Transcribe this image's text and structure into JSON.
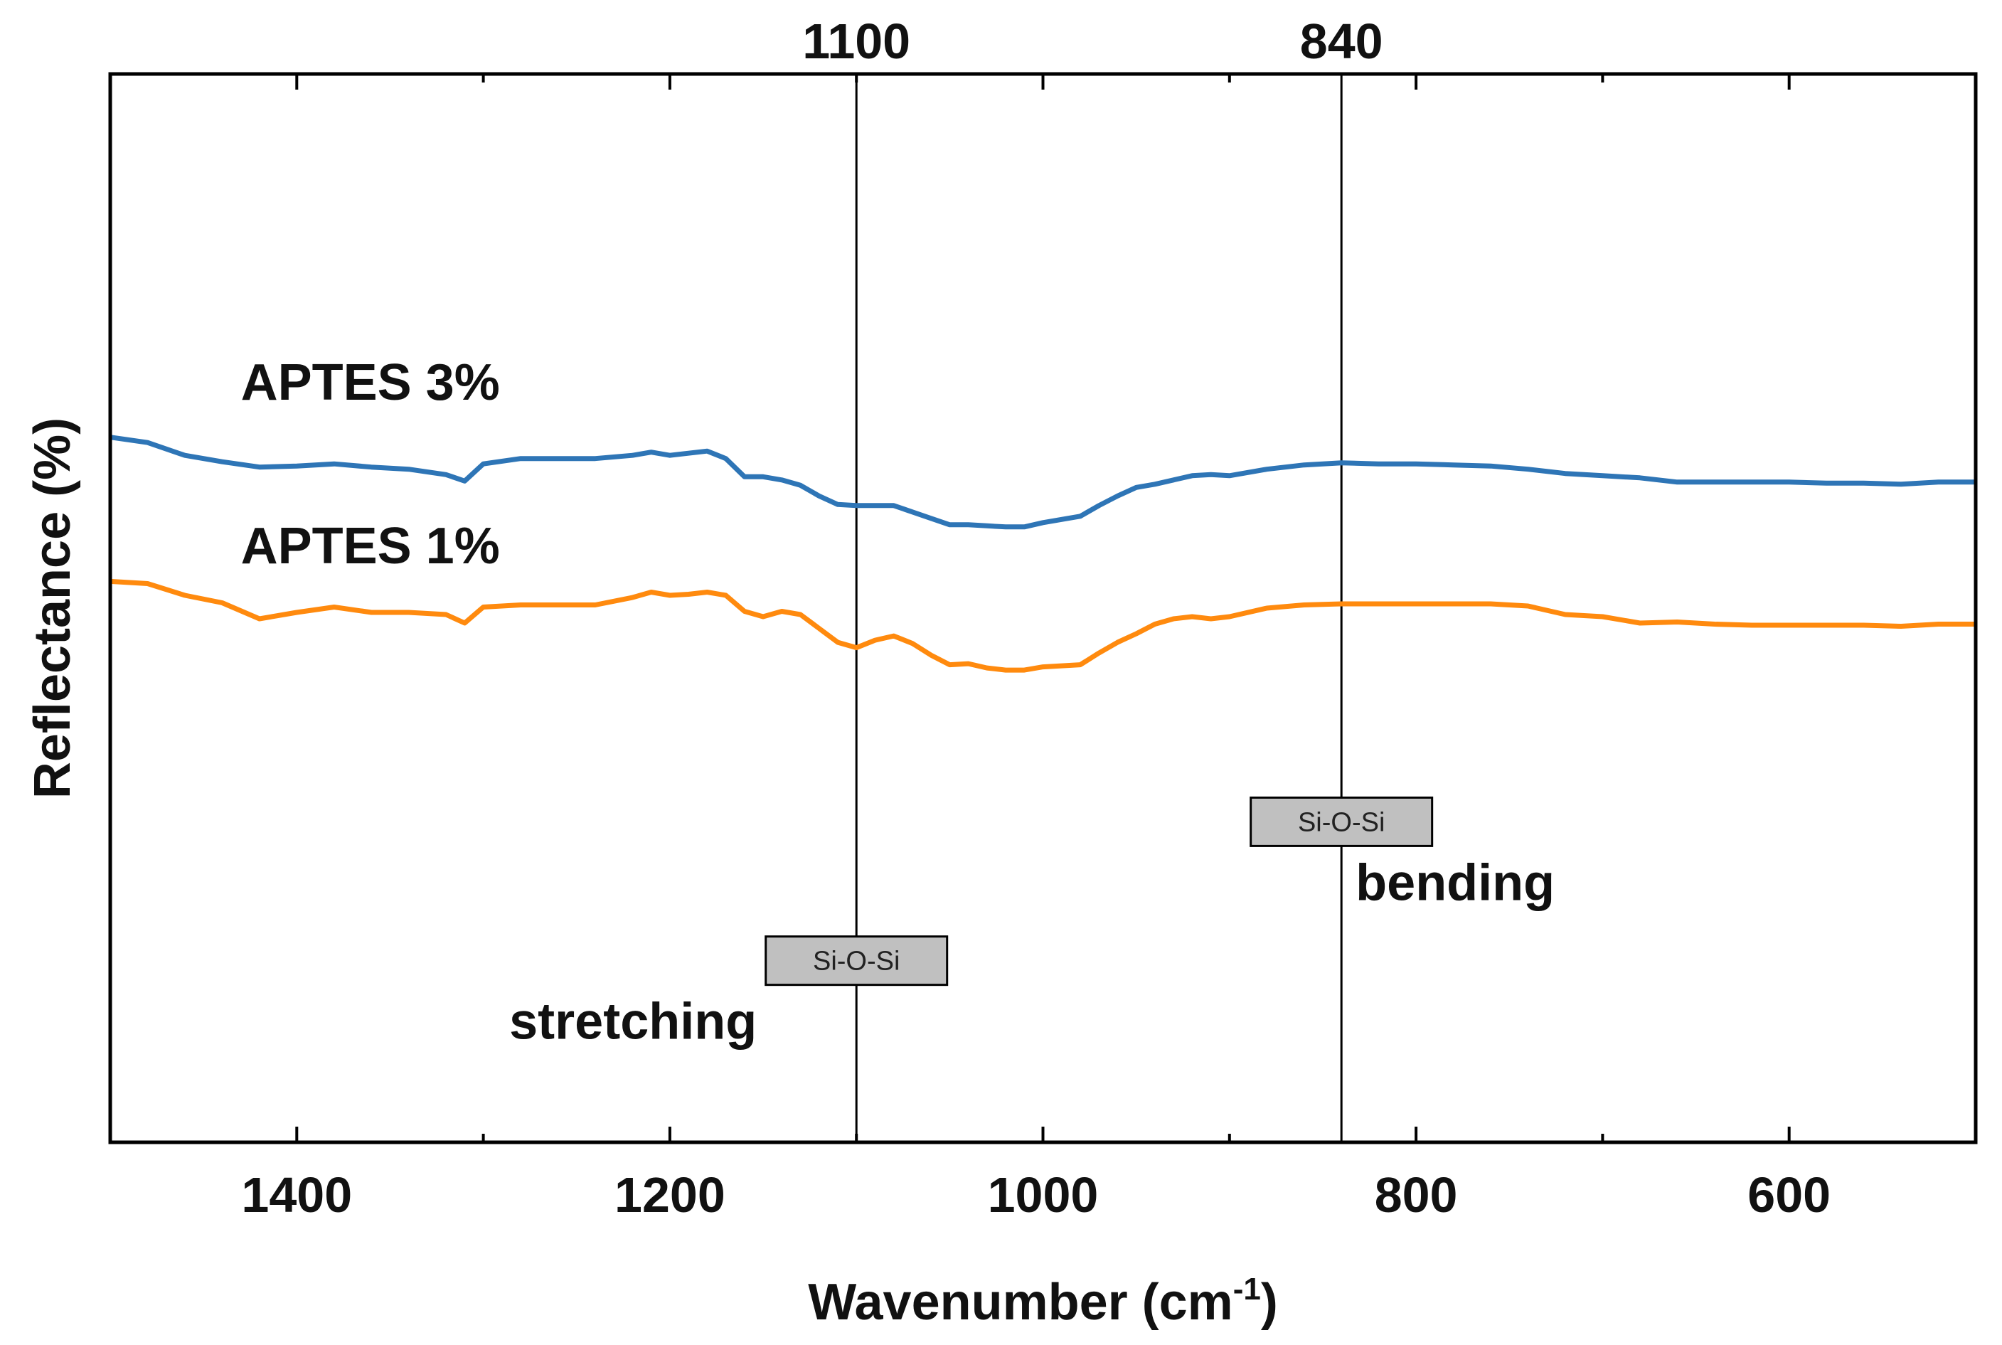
{
  "chart_data": {
    "type": "line",
    "title": "",
    "xlabel": "Wavenumber (cm",
    "xlabel_sup": "-1",
    "xlabel_close": ")",
    "ylabel": "Reflectance (%)",
    "xlim": [
      1500,
      500
    ],
    "ylim": [
      0,
      100
    ],
    "x_ticks": [
      1400,
      1200,
      1000,
      800,
      600
    ],
    "x_minor_ticks": [
      1500,
      1300,
      1100,
      900,
      700,
      500
    ],
    "reference_lines": [
      {
        "x": 1100,
        "label": "1100"
      },
      {
        "x": 840,
        "label": "840"
      }
    ],
    "annotations": [
      {
        "box_text": "Si-O-Si",
        "label": "stretching",
        "x": 1100,
        "y": 17
      },
      {
        "box_text": "Si-O-Si",
        "label": "bending",
        "x": 840,
        "y": 30
      }
    ],
    "series": [
      {
        "name": "APTES 3%",
        "color": "#2E75B6",
        "label_at": {
          "x": 1430,
          "y": 69.5
        },
        "x": [
          1500,
          1480,
          1460,
          1440,
          1420,
          1400,
          1380,
          1360,
          1340,
          1320,
          1310,
          1300,
          1280,
          1260,
          1240,
          1220,
          1210,
          1200,
          1190,
          1180,
          1170,
          1160,
          1150,
          1140,
          1130,
          1120,
          1110,
          1100,
          1090,
          1080,
          1070,
          1060,
          1050,
          1040,
          1030,
          1020,
          1010,
          1000,
          990,
          980,
          970,
          960,
          950,
          940,
          930,
          920,
          910,
          900,
          880,
          860,
          840,
          820,
          800,
          780,
          760,
          740,
          720,
          700,
          680,
          660,
          640,
          620,
          600,
          580,
          560,
          540,
          520,
          500
        ],
        "y": [
          66.0,
          65.5,
          64.3,
          63.7,
          63.2,
          63.3,
          63.5,
          63.2,
          63.0,
          62.5,
          61.9,
          63.5,
          64.0,
          64.0,
          64.0,
          64.3,
          64.6,
          64.3,
          64.5,
          64.7,
          64.0,
          62.3,
          62.3,
          62.0,
          61.5,
          60.5,
          59.7,
          59.6,
          59.6,
          59.6,
          59.0,
          58.4,
          57.8,
          57.8,
          57.7,
          57.6,
          57.6,
          58.0,
          58.3,
          58.6,
          59.6,
          60.5,
          61.3,
          61.6,
          62.0,
          62.4,
          62.5,
          62.4,
          63.0,
          63.4,
          63.6,
          63.5,
          63.5,
          63.4,
          63.3,
          63.0,
          62.6,
          62.4,
          62.2,
          61.8,
          61.8,
          61.8,
          61.8,
          61.7,
          61.7,
          61.6,
          61.8,
          61.8
        ]
      },
      {
        "name": "APTES 1%",
        "color": "#FF8A0E",
        "label_at": {
          "x": 1430,
          "y": 54.2
        },
        "x": [
          1500,
          1480,
          1460,
          1440,
          1420,
          1400,
          1380,
          1360,
          1340,
          1320,
          1310,
          1300,
          1280,
          1260,
          1240,
          1220,
          1210,
          1200,
          1190,
          1180,
          1170,
          1160,
          1150,
          1140,
          1130,
          1120,
          1110,
          1100,
          1090,
          1080,
          1070,
          1060,
          1050,
          1040,
          1030,
          1020,
          1010,
          1000,
          990,
          980,
          970,
          960,
          950,
          940,
          930,
          920,
          910,
          900,
          880,
          860,
          840,
          820,
          800,
          780,
          760,
          740,
          720,
          700,
          680,
          660,
          640,
          620,
          600,
          580,
          560,
          540,
          520,
          500
        ],
        "y": [
          52.5,
          52.3,
          51.2,
          50.5,
          49.0,
          49.6,
          50.1,
          49.6,
          49.6,
          49.4,
          48.6,
          50.1,
          50.3,
          50.3,
          50.3,
          51.0,
          51.5,
          51.2,
          51.3,
          51.5,
          51.2,
          49.7,
          49.2,
          49.7,
          49.4,
          48.1,
          46.8,
          46.3,
          47.0,
          47.4,
          46.7,
          45.6,
          44.7,
          44.8,
          44.4,
          44.2,
          44.2,
          44.5,
          44.6,
          44.7,
          45.8,
          46.8,
          47.6,
          48.5,
          49.0,
          49.2,
          49.0,
          49.2,
          50.0,
          50.3,
          50.4,
          50.4,
          50.4,
          50.4,
          50.4,
          50.2,
          49.4,
          49.2,
          48.6,
          48.7,
          48.5,
          48.4,
          48.4,
          48.4,
          48.4,
          48.3,
          48.5,
          48.5
        ]
      }
    ]
  }
}
